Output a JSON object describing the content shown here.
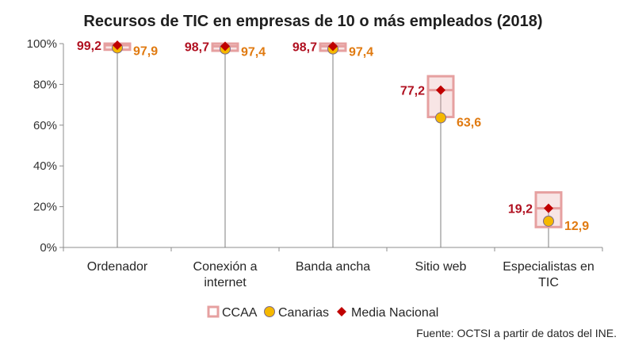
{
  "chart_data": {
    "type": "box-range",
    "title": "Recursos de TIC en empresas de 10 o más empleados (2018)",
    "categories": [
      [
        "Ordenador"
      ],
      [
        "Conexión a",
        "internet"
      ],
      [
        "Banda ancha"
      ],
      [
        "Sitio web"
      ],
      [
        "Especialistas en",
        "TIC"
      ]
    ],
    "ylim": [
      0,
      100
    ],
    "yticks": [
      "0%",
      "20%",
      "40%",
      "60%",
      "80%",
      "100%"
    ],
    "grid": false,
    "legend_position": "bottom",
    "series": [
      {
        "name": "CCAA",
        "kind": "range",
        "color": "#e6a0a0",
        "ranges": [
          [
            97.0,
            100.0
          ],
          [
            96.5,
            100.0
          ],
          [
            96.5,
            100.0
          ],
          [
            64.0,
            84.0
          ],
          [
            10.0,
            27.0
          ]
        ]
      },
      {
        "name": "Canarias",
        "kind": "point",
        "color": "#f5b800",
        "values": [
          97.9,
          97.4,
          97.4,
          63.6,
          12.9
        ],
        "labels": [
          "97,9",
          "97,4",
          "97,4",
          "63,6",
          "12,9"
        ]
      },
      {
        "name": "Media Nacional",
        "kind": "point",
        "color": "#c00000",
        "values": [
          99.2,
          98.7,
          98.7,
          77.2,
          19.2
        ],
        "labels": [
          "99,2",
          "98,7",
          "98,7",
          "77,2",
          "19,2"
        ]
      }
    ],
    "source": "Fuente: OCTSI a partir de datos del INE."
  }
}
